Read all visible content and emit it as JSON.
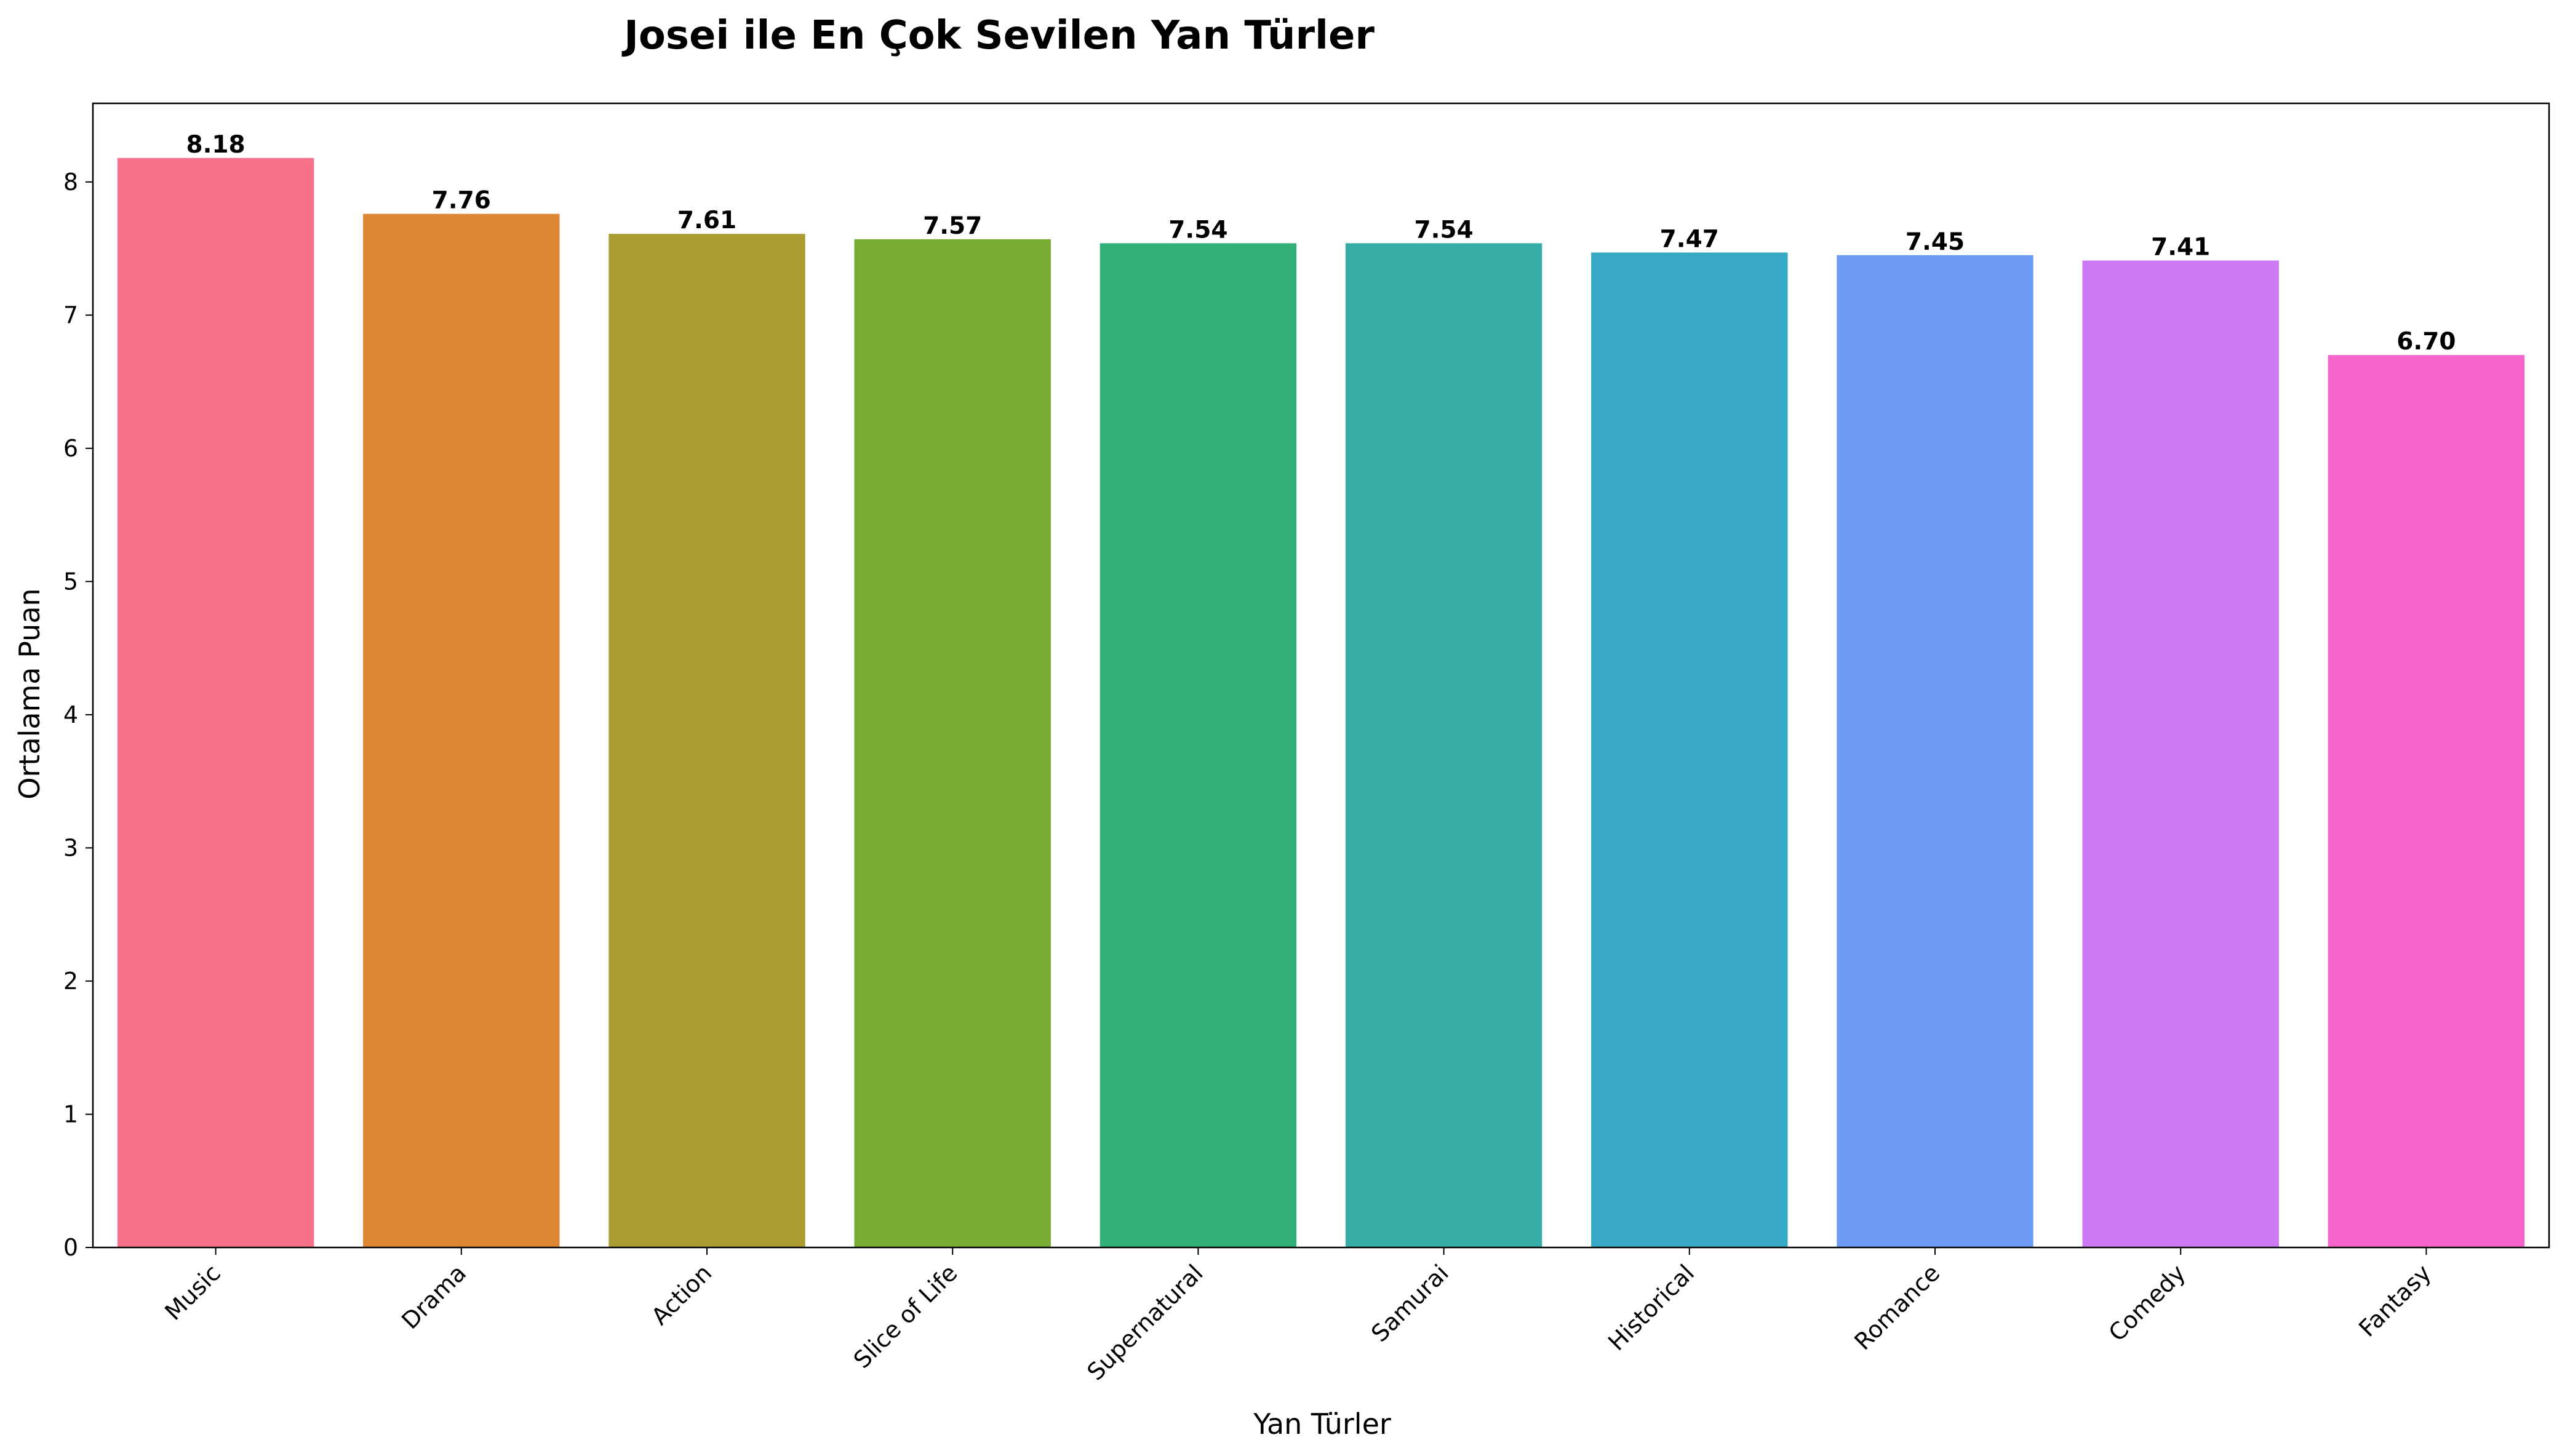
{
  "chart_data": {
    "type": "bar",
    "title": "Josei ile En Çok Sevilen Yan Türler",
    "xlabel": "Yan Türler",
    "ylabel": "Ortalama Puan",
    "categories": [
      "Music",
      "Drama",
      "Action",
      "Slice of Life",
      "Supernatural",
      "Samurai",
      "Historical",
      "Romance",
      "Comedy",
      "Fantasy"
    ],
    "values": [
      8.18,
      7.76,
      7.61,
      7.57,
      7.54,
      7.54,
      7.47,
      7.45,
      7.41,
      6.7
    ],
    "value_labels": [
      "8.18",
      "7.76",
      "7.61",
      "7.57",
      "7.54",
      "7.54",
      "7.47",
      "7.45",
      "7.41",
      "6.70"
    ],
    "colors": [
      "#f77189",
      "#dd8735",
      "#ab9d32",
      "#77ab31",
      "#33b07a",
      "#36ada4",
      "#38a9c5",
      "#6e9bf4",
      "#cc79f4",
      "#f565cc"
    ],
    "ylim": [
      0,
      8.59
    ],
    "yticks": [
      0,
      1,
      2,
      3,
      4,
      5,
      6,
      7,
      8
    ],
    "grid": false,
    "legend": "none",
    "axes_color": "#000000"
  }
}
